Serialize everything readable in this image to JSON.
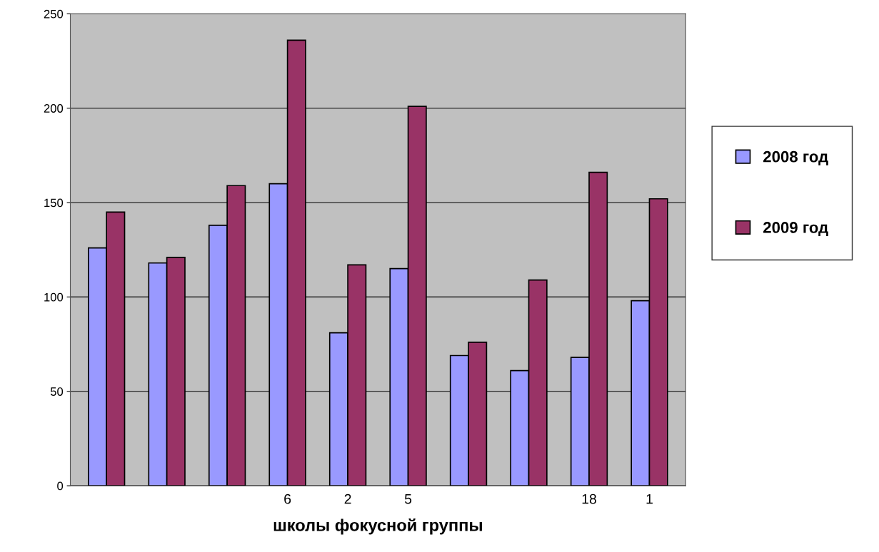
{
  "chart_data": {
    "type": "bar",
    "xlabel": "школы фокусной группы",
    "categories": [
      null,
      null,
      null,
      "6",
      "2",
      "5",
      null,
      null,
      "18",
      "1"
    ],
    "series": [
      {
        "name": "2008 год",
        "color": "#9999ff",
        "values": [
          126,
          118,
          138,
          160,
          81,
          115,
          69,
          61,
          68,
          98
        ]
      },
      {
        "name": "2009 год",
        "color": "#993366",
        "values": [
          145,
          121,
          159,
          236,
          117,
          201,
          76,
          109,
          166,
          152
        ]
      }
    ],
    "ylim": [
      0,
      250
    ],
    "yticks": [
      0,
      50,
      100,
      150,
      200,
      250
    ],
    "grid": "y",
    "legend": "right"
  }
}
